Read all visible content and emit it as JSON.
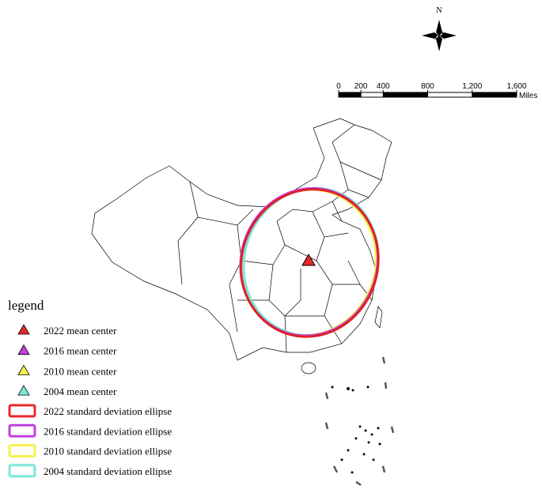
{
  "north_label": "N",
  "scale_bar": {
    "ticks": [
      0,
      200,
      400,
      800,
      {
        "value": 1200,
        "label": "1,200"
      },
      {
        "value": 1600,
        "label": "1,600"
      }
    ],
    "unit": "Miles"
  },
  "legend": {
    "title": "legend",
    "items": [
      "2022 mean center",
      "2016 mean center",
      "2010 mean center",
      "2004 mean center",
      "2022 standard deviation ellipse",
      "2016 standard deviation ellipse",
      "2010 standard deviation ellipse",
      "2004 standard deviation ellipse"
    ]
  }
}
